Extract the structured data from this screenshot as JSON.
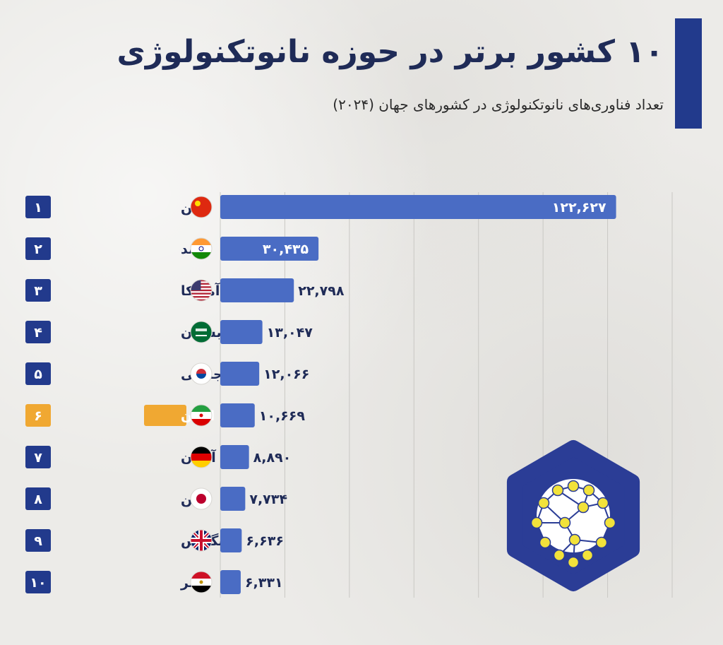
{
  "header": {
    "title": "۱۰ کشور برتر در حوزه نانوتکنولوژی",
    "subtitle": "تعداد فناوری‌های نانوتکنولوژی در کشورهای جهان (۲۰۲۴)"
  },
  "colors": {
    "navy": "#223a8c",
    "bar": "#4a6cc4",
    "highlight": "#f0a832",
    "text": "#1f2b57",
    "logo_bg": "#2b3d96",
    "logo_node": "#f2e23a"
  },
  "logo": {
    "icon": "nanotech-molecule-icon"
  },
  "chart_data": {
    "type": "bar",
    "orientation": "horizontal",
    "categories": [
      "چین",
      "هند",
      "آمریکا",
      "عربستان",
      "کره جنوبی",
      "ایران",
      "آلمان",
      "ژاپن",
      "انگلیس",
      "مصر"
    ],
    "ranks": [
      "۱",
      "۲",
      "۳",
      "۴",
      "۵",
      "۶",
      "۷",
      "۸",
      "۹",
      "۱۰"
    ],
    "values": [
      122627,
      30435,
      22798,
      13047,
      12066,
      10669,
      8890,
      7734,
      6636,
      6331
    ],
    "value_labels": [
      "۱۲۲,۶۲۷",
      "۳۰,۴۳۵",
      "۲۲,۷۹۸",
      "۱۳,۰۴۷",
      "۱۲,۰۶۶",
      "۱۰,۶۶۹",
      "۸,۸۹۰",
      "۷,۷۳۴",
      "۶,۶۳۶",
      "۶,۳۳۱"
    ],
    "flags": [
      "china-flag-icon",
      "india-flag-icon",
      "usa-flag-icon",
      "saudi-arabia-flag-icon",
      "south-korea-flag-icon",
      "iran-flag-icon",
      "germany-flag-icon",
      "japan-flag-icon",
      "uk-flag-icon",
      "egypt-flag-icon"
    ],
    "highlight_index": 5,
    "xlim": [
      0,
      140000
    ],
    "grid": true,
    "legend": "none"
  }
}
